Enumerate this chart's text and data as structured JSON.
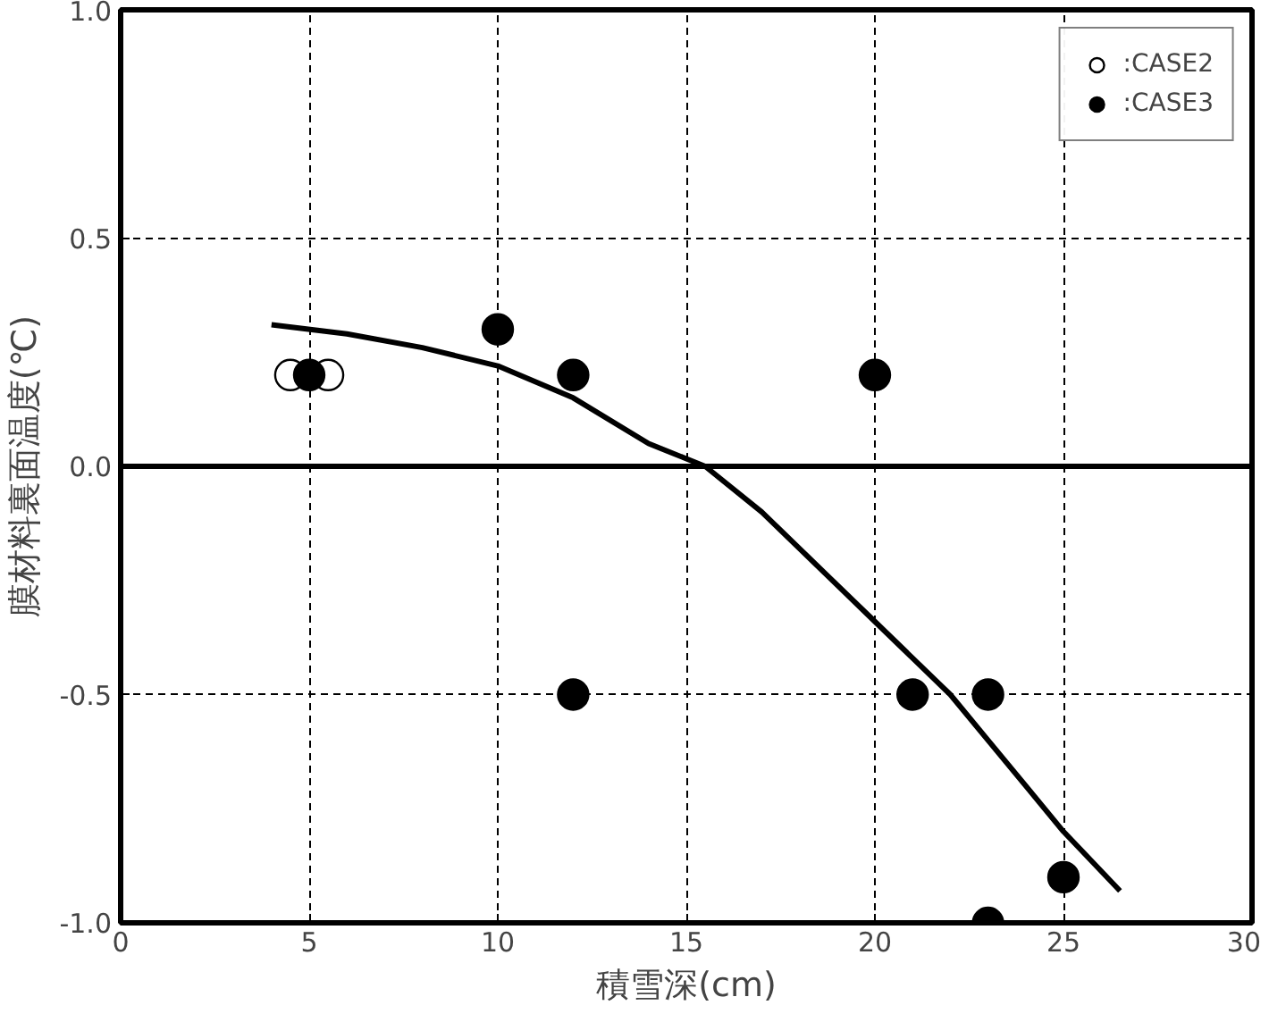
{
  "chart_data": {
    "type": "scatter",
    "xlabel": "積雪深(cm)",
    "ylabel": "膜材料裏面温度(℃)",
    "xlim": [
      0,
      30
    ],
    "xticks": [
      0,
      5,
      10,
      15,
      20,
      25,
      30
    ],
    "ylim": [
      -1.0,
      1.0
    ],
    "yticks": [
      {
        "value": -1.0,
        "label": "-1.0"
      },
      {
        "value": -0.5,
        "label": "-0.5"
      },
      {
        "value": 0.0,
        "label": "0.0"
      },
      0.5,
      {
        "value": 1.0,
        "label": "1.0"
      }
    ],
    "grid": true,
    "legend": "top right",
    "marker": "circle",
    "ref_lines": [
      {
        "axis": "y",
        "value": 0,
        "color": "#000000"
      }
    ],
    "series": [
      {
        "name": ":CASE2",
        "color": "#ffffff",
        "x": [
          4.5,
          5.5
        ],
        "values": [
          0.2,
          0.2
        ]
      },
      {
        "name": ":CASE3",
        "color": "#000000",
        "x": [
          5,
          10,
          12,
          12,
          20,
          21,
          23,
          23,
          25
        ],
        "values": [
          0.2,
          0.3,
          0.2,
          -0.5,
          0.2,
          -0.5,
          -0.5,
          -1.0,
          -0.9
        ]
      },
      {
        "type": "line",
        "marker": "none",
        "color": "#000000",
        "x": [
          4,
          6,
          8,
          10,
          12,
          14,
          15.5,
          17,
          19,
          20,
          22,
          23,
          24,
          25,
          26.5
        ],
        "values": [
          0.31,
          0.29,
          0.26,
          0.22,
          0.15,
          0.05,
          0.0,
          -0.1,
          -0.26,
          -0.34,
          -0.5,
          -0.6,
          -0.7,
          -0.8,
          -0.93
        ]
      }
    ]
  }
}
